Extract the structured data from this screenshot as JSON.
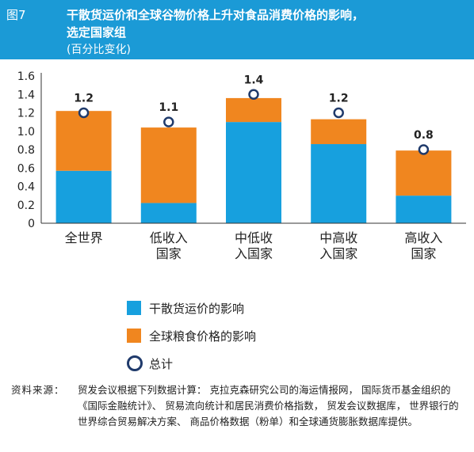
{
  "header": {
    "figure_number": "图7",
    "title_line1": "干散货运价和全球谷物价格上升对食品消费价格的影响，",
    "title_line2": "选定国家组",
    "subtitle": "(百分比变化)"
  },
  "colors": {
    "header_bg": "#1b9ad6",
    "freight": "#17a0de",
    "grain": "#f0861f",
    "total_marker": "#1f3a6b"
  },
  "chart_data": {
    "type": "bar",
    "stacked": true,
    "title": "干散货运价和全球谷物价格上升对食品消费价格的影响，选定国家组",
    "subtitle": "(百分比变化)",
    "categories": [
      "全世界",
      "低收入国家",
      "中低收入国家",
      "中高收入国家",
      "高收入国家"
    ],
    "category_label_lines": [
      [
        "全世界"
      ],
      [
        "低收入",
        "国家"
      ],
      [
        "中低收",
        "入国家"
      ],
      [
        "中高收",
        "入国家"
      ],
      [
        "高收入",
        "国家"
      ]
    ],
    "series": [
      {
        "name": "干散货运价的影响",
        "values": [
          0.57,
          0.22,
          1.1,
          0.86,
          0.3
        ]
      },
      {
        "name": "全球粮食价格的影响",
        "values": [
          0.65,
          0.82,
          0.26,
          0.27,
          0.49
        ]
      }
    ],
    "totals": {
      "name": "总计",
      "values": [
        1.2,
        1.1,
        1.4,
        1.2,
        0.8
      ],
      "labels": [
        "1.2",
        "1.1",
        "1.4",
        "1.2",
        "0.8"
      ]
    },
    "ylim": [
      0,
      1.6
    ],
    "yticks": [
      0,
      0.2,
      0.4,
      0.6,
      0.8,
      1.0,
      1.2,
      1.4,
      1.6
    ],
    "ytick_labels": [
      "0",
      "0.2",
      "0.4",
      "0.6",
      "0.8",
      "1.0",
      "1.2",
      "1.4",
      "1.6"
    ],
    "grid": false,
    "legend_position": "bottom"
  },
  "legend": {
    "freight": "干散货运价的影响",
    "grain": "全球粮食价格的影响",
    "total": "总计"
  },
  "source": {
    "label": "资料来源：",
    "text": "贸发会议根据下列数据计算： 克拉克森研究公司的海运情报网， 国际货币基金组织的 《国际金融统计》、 贸易流向统计和居民消费价格指数， 贸发会议数据库， 世界银行的世界综合贸易解决方案、 商品价格数据（粉单）和全球通货膨胀数据库提供。"
  }
}
